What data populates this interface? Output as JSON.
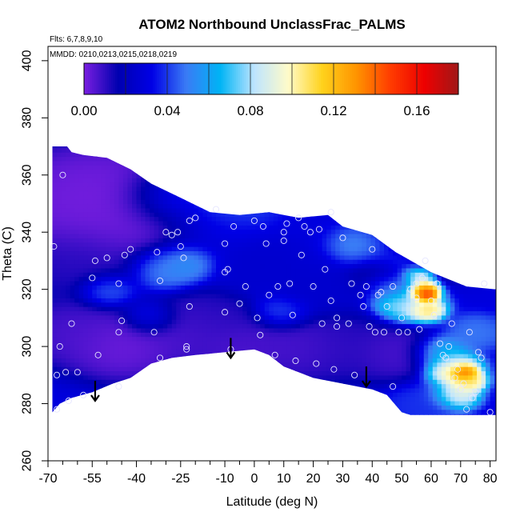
{
  "chart_data": {
    "type": "heatmap",
    "title": "ATOM2 Northbound UnclassFrac_PALMS",
    "annotations": {
      "flights": "Flts: 6,7,8,9,10",
      "dates": "MMDD: 0210,0213,0215,0218,0219"
    },
    "xlabel": "Latitude (deg N)",
    "ylabel": "Theta (C)",
    "xlim": [
      -70,
      82
    ],
    "ylim": [
      260,
      405
    ],
    "x_ticks_major": [
      -70,
      -55,
      -40,
      -25,
      -10,
      0,
      10,
      20,
      30,
      40,
      50,
      60,
      70,
      80
    ],
    "x_ticks_minor": [
      -65,
      -60,
      -50,
      -45,
      -35,
      -30,
      -20,
      -15,
      -5,
      5,
      15,
      25,
      35,
      45,
      55,
      65,
      75
    ],
    "y_ticks": [
      260,
      280,
      300,
      320,
      340,
      360,
      380,
      400
    ],
    "colorbar": {
      "min": 0.0,
      "max": 0.18,
      "tick_values": [
        0.0,
        0.04,
        0.08,
        0.12,
        0.16
      ],
      "tick_labels": [
        "0.00",
        "0.04",
        "0.08",
        "0.12",
        "0.16"
      ],
      "colors": [
        "#7a1fe0",
        "#0000b0",
        "#0000e6",
        "#3a7bf5",
        "#00b4f5",
        "#bde4ff",
        "#fffbc9",
        "#ffd21c",
        "#ff9400",
        "#ff3c00",
        "#ee0000",
        "#a01818"
      ]
    },
    "domain": {
      "bottom": [
        [
          -68.5,
          277
        ],
        [
          -66,
          280
        ],
        [
          -62,
          282
        ],
        [
          -55,
          284
        ],
        [
          -48,
          287
        ],
        [
          -42,
          289
        ],
        [
          -35,
          294
        ],
        [
          -28,
          296
        ],
        [
          -20,
          297
        ],
        [
          -10,
          298
        ],
        [
          0,
          299
        ],
        [
          5,
          297
        ],
        [
          10,
          293
        ],
        [
          20,
          289
        ],
        [
          30,
          287
        ],
        [
          40,
          285
        ],
        [
          45,
          283
        ],
        [
          50,
          277
        ],
        [
          53,
          276
        ],
        [
          82,
          276
        ]
      ],
      "top": [
        [
          82,
          320
        ],
        [
          72,
          321
        ],
        [
          60,
          326
        ],
        [
          48,
          333
        ],
        [
          40,
          339
        ],
        [
          30,
          342
        ],
        [
          25,
          346
        ],
        [
          15,
          345
        ],
        [
          5,
          347
        ],
        [
          -5,
          346
        ],
        [
          -15,
          347
        ],
        [
          -25,
          352
        ],
        [
          -35,
          357
        ],
        [
          -42,
          362
        ],
        [
          -50,
          366
        ],
        [
          -58,
          367
        ],
        [
          -62,
          368
        ],
        [
          -63.5,
          370
        ],
        [
          -68.5,
          370
        ]
      ]
    },
    "background_value": 0.03,
    "field": [
      {
        "lat": -62,
        "theta": 350,
        "value": 0.0,
        "r": 9
      },
      {
        "lat": -52,
        "theta": 355,
        "value": 0.0,
        "r": 8
      },
      {
        "lat": -40,
        "theta": 345,
        "value": 0.0,
        "r": 8
      },
      {
        "lat": -60,
        "theta": 330,
        "value": 0.01,
        "r": 7
      },
      {
        "lat": -45,
        "theta": 300,
        "value": 0.0,
        "r": 6
      },
      {
        "lat": -62,
        "theta": 305,
        "value": 0.005,
        "r": 6
      },
      {
        "lat": -25,
        "theta": 305,
        "value": 0.005,
        "r": 6
      },
      {
        "lat": -15,
        "theta": 310,
        "value": 0.01,
        "r": 5
      },
      {
        "lat": -5,
        "theta": 300,
        "value": 0.005,
        "r": 5
      },
      {
        "lat": 15,
        "theta": 300,
        "value": 0.005,
        "r": 6
      },
      {
        "lat": 30,
        "theta": 300,
        "value": 0.01,
        "r": 6
      },
      {
        "lat": 48,
        "theta": 298,
        "value": 0.005,
        "r": 5
      },
      {
        "lat": 45,
        "theta": 325,
        "value": 0.005,
        "r": 4
      },
      {
        "lat": 55,
        "theta": 335,
        "value": 0.0,
        "r": 6
      },
      {
        "lat": -15,
        "theta": 340,
        "value": 0.03,
        "r": 6
      },
      {
        "lat": 0,
        "theta": 330,
        "value": 0.025,
        "r": 5
      },
      {
        "lat": 20,
        "theta": 320,
        "value": 0.025,
        "r": 5
      },
      {
        "lat": -30,
        "theta": 328,
        "value": 0.055,
        "r": 4
      },
      {
        "lat": -22,
        "theta": 330,
        "value": 0.06,
        "r": 3
      },
      {
        "lat": -50,
        "theta": 320,
        "value": 0.05,
        "r": 3
      },
      {
        "lat": -35,
        "theta": 310,
        "value": 0.04,
        "r": 3
      },
      {
        "lat": 10,
        "theta": 312,
        "value": 0.045,
        "r": 3
      },
      {
        "lat": -30,
        "theta": 352,
        "value": 0.05,
        "r": 5
      },
      {
        "lat": -10,
        "theta": 348,
        "value": 0.045,
        "r": 5
      },
      {
        "lat": 40,
        "theta": 335,
        "value": 0.06,
        "r": 4
      },
      {
        "lat": 50,
        "theta": 330,
        "value": 0.06,
        "r": 3
      },
      {
        "lat": 52,
        "theta": 315,
        "value": 0.085,
        "r": 3.5
      },
      {
        "lat": 47,
        "theta": 322,
        "value": 0.07,
        "r": 3
      },
      {
        "lat": 57,
        "theta": 320,
        "value": 0.16,
        "r": 1.8
      },
      {
        "lat": 58,
        "theta": 318,
        "value": 0.175,
        "r": 1.3
      },
      {
        "lat": 55,
        "theta": 325,
        "value": 0.13,
        "r": 2
      },
      {
        "lat": 58,
        "theta": 313,
        "value": 0.12,
        "r": 2
      },
      {
        "lat": 63,
        "theta": 298,
        "value": 0.07,
        "r": 3
      },
      {
        "lat": 67,
        "theta": 292,
        "value": 0.11,
        "r": 3
      },
      {
        "lat": 71,
        "theta": 291,
        "value": 0.16,
        "r": 1.4
      },
      {
        "lat": 72,
        "theta": 288,
        "value": 0.115,
        "r": 2
      },
      {
        "lat": 68,
        "theta": 283,
        "value": 0.1,
        "r": 2.5
      },
      {
        "lat": 58,
        "theta": 280,
        "value": 0.04,
        "r": 4
      },
      {
        "lat": 75,
        "theta": 305,
        "value": 0.05,
        "r": 3
      }
    ],
    "observations": [
      {
        "lat": -68,
        "theta": 335
      },
      {
        "lat": -65,
        "theta": 360
      },
      {
        "lat": -66,
        "theta": 300
      },
      {
        "lat": -67,
        "theta": 290
      },
      {
        "lat": -64,
        "theta": 291
      },
      {
        "lat": -60,
        "theta": 291
      },
      {
        "lat": -62,
        "theta": 308
      },
      {
        "lat": -58,
        "theta": 283
      },
      {
        "lat": -63,
        "theta": 281
      },
      {
        "lat": -67,
        "theta": 278
      },
      {
        "lat": -53,
        "theta": 297
      },
      {
        "lat": -55,
        "theta": 324
      },
      {
        "lat": -54,
        "theta": 330
      },
      {
        "lat": -50,
        "theta": 331
      },
      {
        "lat": -46,
        "theta": 322
      },
      {
        "lat": -44,
        "theta": 332
      },
      {
        "lat": -42,
        "theta": 334
      },
      {
        "lat": -45,
        "theta": 309
      },
      {
        "lat": -46,
        "theta": 305
      },
      {
        "lat": -46,
        "theta": 286
      },
      {
        "lat": -33,
        "theta": 333
      },
      {
        "lat": -32,
        "theta": 323
      },
      {
        "lat": -30,
        "theta": 340
      },
      {
        "lat": -28,
        "theta": 339
      },
      {
        "lat": -26,
        "theta": 340
      },
      {
        "lat": -25,
        "theta": 335
      },
      {
        "lat": -24,
        "theta": 331
      },
      {
        "lat": -22,
        "theta": 344
      },
      {
        "lat": -20,
        "theta": 345
      },
      {
        "lat": -22,
        "theta": 314
      },
      {
        "lat": -23,
        "theta": 300
      },
      {
        "lat": -23,
        "theta": 299
      },
      {
        "lat": -34,
        "theta": 305
      },
      {
        "lat": -32,
        "theta": 296
      },
      {
        "lat": -13,
        "theta": 348
      },
      {
        "lat": -10,
        "theta": 336
      },
      {
        "lat": -10,
        "theta": 326
      },
      {
        "lat": -9,
        "theta": 327
      },
      {
        "lat": -7,
        "theta": 342
      },
      {
        "lat": -8,
        "theta": 299
      },
      {
        "lat": -10,
        "theta": 312
      },
      {
        "lat": -5,
        "theta": 315
      },
      {
        "lat": -3,
        "theta": 321
      },
      {
        "lat": 0,
        "theta": 344
      },
      {
        "lat": 1,
        "theta": 310
      },
      {
        "lat": 2,
        "theta": 304
      },
      {
        "lat": 3,
        "theta": 342
      },
      {
        "lat": 4,
        "theta": 336
      },
      {
        "lat": 5,
        "theta": 318
      },
      {
        "lat": 7,
        "theta": 297
      },
      {
        "lat": 8,
        "theta": 321
      },
      {
        "lat": 10,
        "theta": 340
      },
      {
        "lat": 10,
        "theta": 337
      },
      {
        "lat": 11,
        "theta": 343
      },
      {
        "lat": 12,
        "theta": 322
      },
      {
        "lat": 13,
        "theta": 311
      },
      {
        "lat": 14,
        "theta": 295
      },
      {
        "lat": 15,
        "theta": 345
      },
      {
        "lat": 16,
        "theta": 332
      },
      {
        "lat": 17,
        "theta": 342
      },
      {
        "lat": 19,
        "theta": 340
      },
      {
        "lat": 20,
        "theta": 321
      },
      {
        "lat": 21,
        "theta": 294
      },
      {
        "lat": 22,
        "theta": 341
      },
      {
        "lat": 23,
        "theta": 308
      },
      {
        "lat": 24,
        "theta": 327
      },
      {
        "lat": 26,
        "theta": 347
      },
      {
        "lat": 26,
        "theta": 316
      },
      {
        "lat": 27,
        "theta": 292
      },
      {
        "lat": 28,
        "theta": 307
      },
      {
        "lat": 28,
        "theta": 310
      },
      {
        "lat": 30,
        "theta": 338
      },
      {
        "lat": 32,
        "theta": 308
      },
      {
        "lat": 33,
        "theta": 322
      },
      {
        "lat": 34,
        "theta": 290
      },
      {
        "lat": 36,
        "theta": 318
      },
      {
        "lat": 37,
        "theta": 314
      },
      {
        "lat": 38,
        "theta": 321
      },
      {
        "lat": 39,
        "theta": 307
      },
      {
        "lat": 40,
        "theta": 334
      },
      {
        "lat": 41,
        "theta": 305
      },
      {
        "lat": 42,
        "theta": 318
      },
      {
        "lat": 43,
        "theta": 319
      },
      {
        "lat": 44,
        "theta": 305
      },
      {
        "lat": 45,
        "theta": 314
      },
      {
        "lat": 47,
        "theta": 321
      },
      {
        "lat": 47,
        "theta": 286
      },
      {
        "lat": 49,
        "theta": 305
      },
      {
        "lat": 50,
        "theta": 310
      },
      {
        "lat": 52,
        "theta": 305
      },
      {
        "lat": 53,
        "theta": 320
      },
      {
        "lat": 55,
        "theta": 322
      },
      {
        "lat": 55,
        "theta": 317
      },
      {
        "lat": 56,
        "theta": 306
      },
      {
        "lat": 57,
        "theta": 324
      },
      {
        "lat": 58,
        "theta": 330
      },
      {
        "lat": 60,
        "theta": 316
      },
      {
        "lat": 61,
        "theta": 311
      },
      {
        "lat": 62,
        "theta": 322
      },
      {
        "lat": 63,
        "theta": 301
      },
      {
        "lat": 64,
        "theta": 297
      },
      {
        "lat": 65,
        "theta": 296
      },
      {
        "lat": 66,
        "theta": 300
      },
      {
        "lat": 67,
        "theta": 308
      },
      {
        "lat": 68,
        "theta": 289
      },
      {
        "lat": 69,
        "theta": 292
      },
      {
        "lat": 70,
        "theta": 285
      },
      {
        "lat": 71,
        "theta": 287
      },
      {
        "lat": 72,
        "theta": 278
      },
      {
        "lat": 73,
        "theta": 305
      },
      {
        "lat": 74,
        "theta": 282
      },
      {
        "lat": 75,
        "theta": 284
      },
      {
        "lat": 76,
        "theta": 298
      },
      {
        "lat": 78,
        "theta": 322
      },
      {
        "lat": 80,
        "theta": 277
      },
      {
        "lat": 77,
        "theta": 296
      }
    ],
    "arrows": [
      {
        "lat": -54,
        "theta_top": 288,
        "theta_tip": 281
      },
      {
        "lat": -8,
        "theta_top": 303,
        "theta_tip": 296
      },
      {
        "lat": 38,
        "theta_top": 293,
        "theta_tip": 286
      }
    ]
  }
}
